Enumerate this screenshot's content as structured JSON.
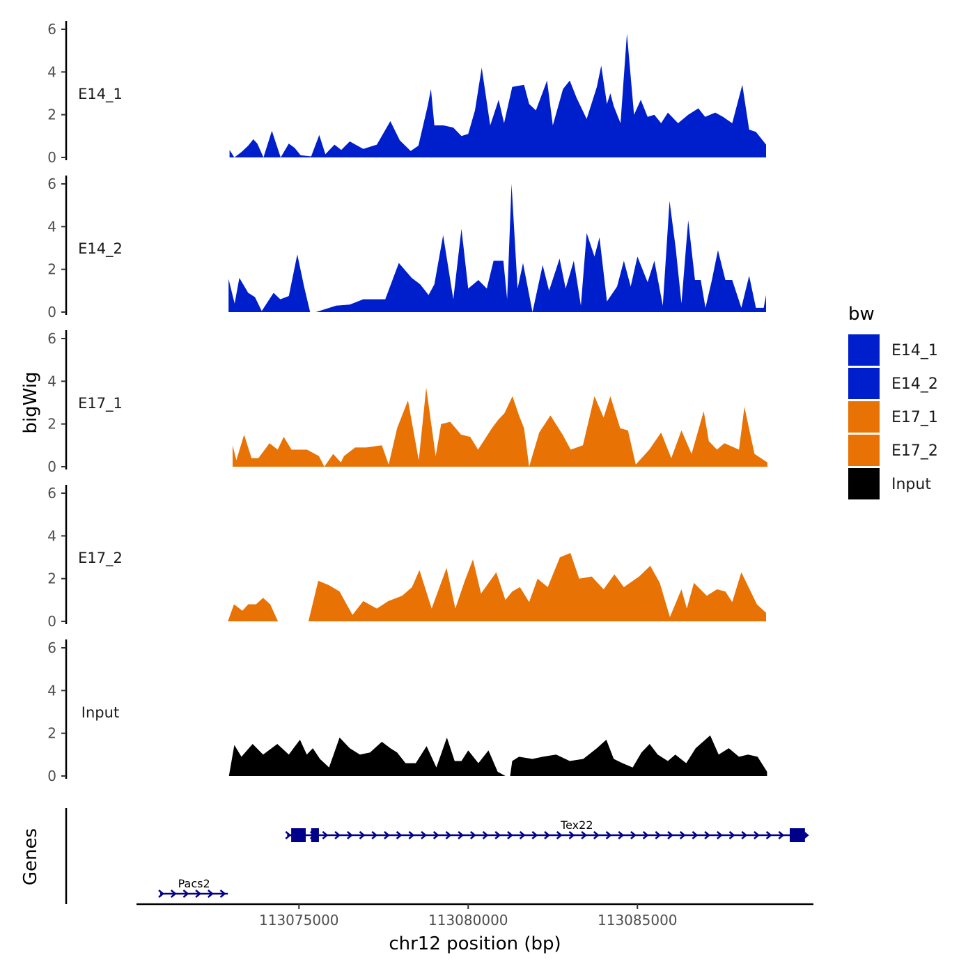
{
  "chart_data": {
    "type": "area",
    "ylabel": "bigWig",
    "xlabel": "chr12 position (bp)",
    "genes_label": "Genes",
    "xlim": [
      113070200,
      113090200
    ],
    "ylim": [
      0,
      6
    ],
    "yticks": [
      "0",
      "2",
      "4",
      "6"
    ],
    "xticks": [
      {
        "value": 113075000,
        "label": "113075000"
      },
      {
        "value": 113080000,
        "label": "113080000"
      },
      {
        "value": 113085000,
        "label": "113085000"
      }
    ],
    "legend": {
      "title": "bw",
      "items": [
        {
          "label": "E14_1",
          "color": "#001fcc"
        },
        {
          "label": "E14_2",
          "color": "#001fcc"
        },
        {
          "label": "E17_1",
          "color": "#e87203"
        },
        {
          "label": "E17_2",
          "color": "#e87203"
        },
        {
          "label": "Input",
          "color": "#000000"
        }
      ]
    },
    "tracks": [
      {
        "name": "E14_1",
        "color": "#001fcc",
        "x": [
          113072950,
          113073090,
          113073300,
          113073500,
          113073650,
          113073770,
          113073950,
          113074200,
          113074460,
          113074700,
          113074870,
          113075050,
          113075360,
          113075600,
          113075780,
          113076050,
          113076250,
          113076500,
          113076900,
          113077300,
          113077700,
          113077980,
          113078300,
          113078530,
          113078800,
          113078900,
          113079000,
          113079270,
          113079560,
          113079800,
          113080000,
          113080200,
          113080400,
          113080650,
          113080900,
          113081060,
          113081300,
          113081650,
          113081800,
          113082000,
          113082330,
          113082500,
          113082800,
          113083000,
          113083200,
          113083500,
          113083800,
          113083930,
          113084100,
          113084200,
          113084300,
          113084500,
          113084690,
          113084900,
          113085100,
          113085300,
          113085500,
          113085700,
          113085900,
          113086200,
          113086500,
          113086800,
          113087000,
          113087300,
          113087530,
          113087800,
          113088100,
          113088300,
          113088500,
          113088800
        ],
        "y": [
          0.35,
          0,
          0.25,
          0.55,
          0.85,
          0.65,
          0,
          1.25,
          0,
          0.65,
          0.45,
          0.1,
          0.05,
          1.05,
          0.15,
          0.6,
          0.35,
          0.75,
          0.4,
          0.6,
          1.7,
          0.8,
          0.3,
          0.55,
          2.4,
          3.2,
          1.5,
          1.5,
          1.4,
          1.0,
          1.1,
          2.2,
          4.2,
          1.5,
          2.7,
          1.6,
          3.3,
          3.4,
          2.5,
          2.2,
          3.6,
          1.5,
          3.2,
          3.6,
          2.8,
          1.8,
          3.3,
          4.3,
          2.5,
          3.0,
          2.4,
          1.6,
          5.8,
          2.0,
          2.7,
          1.9,
          2.0,
          1.6,
          2.1,
          1.6,
          2.0,
          2.3,
          1.9,
          2.1,
          1.9,
          1.6,
          3.4,
          1.3,
          1.2,
          0.6
        ]
      },
      {
        "name": "E14_2",
        "color": "#001fcc",
        "x": [
          113072920,
          113073100,
          113073240,
          113073500,
          113073700,
          113073900,
          113074250,
          113074450,
          113074700,
          113074950,
          113075150,
          113075330,
          113075500,
          113076100,
          113076500,
          113076900,
          113077550,
          113077950,
          113078330,
          113078580,
          113078830,
          113079000,
          113079260,
          113079560,
          113079800,
          113080000,
          113080300,
          113080550,
          113080750,
          113081040,
          113081150,
          113081280,
          113081460,
          113081620,
          113081900,
          113082200,
          113082390,
          113082700,
          113082880,
          113083120,
          113083330,
          113083500,
          113083730,
          113083880,
          113084100,
          113084400,
          113084600,
          113084800,
          113085000,
          113085300,
          113085500,
          113085750,
          113085950,
          113086130,
          113086300,
          113086500,
          113086700,
          113086870,
          113087010,
          113087200,
          113087380,
          113087600,
          113087800,
          113088070,
          113088300,
          113088500,
          113088730,
          113088800
        ],
        "y": [
          1.55,
          0.4,
          1.6,
          0.9,
          0.7,
          0.05,
          0.9,
          0.6,
          0.75,
          2.7,
          1.2,
          0,
          0,
          0.3,
          0.35,
          0.6,
          0.6,
          2.3,
          1.6,
          1.3,
          0.8,
          1.3,
          3.6,
          0.6,
          3.9,
          1.1,
          1.5,
          1.1,
          2.4,
          2.4,
          0.6,
          6.0,
          1.1,
          2.3,
          0.0,
          2.2,
          1.0,
          2.5,
          1.1,
          2.4,
          0.3,
          3.7,
          2.6,
          3.5,
          0.5,
          1.2,
          2.4,
          1.2,
          2.6,
          1.4,
          2.4,
          0.3,
          5.2,
          3.0,
          0.4,
          4.3,
          1.5,
          1.5,
          0.2,
          1.5,
          2.9,
          1.5,
          1.5,
          0.2,
          1.7,
          0.2,
          0.2,
          0.8
        ]
      },
      {
        "name": "E17_1",
        "color": "#e87203",
        "x": [
          113073040,
          113073150,
          113073380,
          113073600,
          113073800,
          113074130,
          113074370,
          113074550,
          113074780,
          113075030,
          113075240,
          113075590,
          113075750,
          113076010,
          113076240,
          113076330,
          113076660,
          113076990,
          113077450,
          113077650,
          113077900,
          113078220,
          113078540,
          113078760,
          113079040,
          113079200,
          113079470,
          113079790,
          113080060,
          113080290,
          113080700,
          113080890,
          113081070,
          113081310,
          113081500,
          113081650,
          113081800,
          113082100,
          113082430,
          113082790,
          113083030,
          113083390,
          113083730,
          113084000,
          113084200,
          113084490,
          113084720,
          113084950,
          113085350,
          113085700,
          113086000,
          113086300,
          113086600,
          113086960,
          113087110,
          113087350,
          113087570,
          113088000,
          113088160,
          113088460,
          113088840
        ],
        "y": [
          1.0,
          0.3,
          1.5,
          0.4,
          0.4,
          1.1,
          0.8,
          1.4,
          0.8,
          0.8,
          0.8,
          0.5,
          0,
          0.6,
          0.2,
          0.5,
          0.9,
          0.9,
          1.0,
          0.1,
          1.8,
          3.1,
          0.3,
          3.7,
          0.5,
          2.0,
          2.1,
          1.5,
          1.4,
          0.8,
          1.8,
          2.2,
          2.5,
          3.3,
          2.4,
          1.8,
          0.0,
          1.6,
          2.4,
          1.5,
          0.8,
          1.0,
          3.3,
          2.3,
          3.3,
          1.8,
          1.7,
          0.1,
          0.8,
          1.6,
          0.4,
          1.7,
          0.6,
          2.6,
          1.2,
          0.8,
          1.1,
          0.8,
          2.8,
          0.6,
          0.2
        ]
      },
      {
        "name": "E17_2",
        "color": "#e87203",
        "x": [
          113072900,
          113073080,
          113073330,
          113073500,
          113073730,
          113073940,
          113074150,
          113074380,
          113075280,
          113075570,
          113075880,
          113076200,
          113076580,
          113076900,
          113077300,
          113077640,
          113078050,
          113078340,
          113078560,
          113078920,
          113079360,
          113079620,
          113079900,
          113080140,
          113080380,
          113080830,
          113081100,
          113081300,
          113081530,
          113081800,
          113082050,
          113082350,
          113082710,
          113083020,
          113083280,
          113083650,
          113084000,
          113084320,
          113084600,
          113085050,
          113085380,
          113085660,
          113085960,
          113086300,
          113086460,
          113086670,
          113087050,
          113087350,
          113087600,
          113087800,
          113088070,
          113088530,
          113088800
        ],
        "y": [
          0,
          0.8,
          0.5,
          0.8,
          0.8,
          1.1,
          0.8,
          0,
          0,
          1.9,
          1.7,
          1.4,
          0.3,
          0.95,
          0.6,
          0.95,
          1.2,
          1.6,
          2.4,
          0.6,
          2.5,
          0.6,
          1.9,
          2.9,
          1.3,
          2.3,
          1.0,
          1.4,
          1.6,
          0.9,
          2.0,
          1.6,
          3.0,
          3.2,
          2.0,
          2.1,
          1.5,
          2.2,
          1.6,
          2.1,
          2.6,
          1.8,
          0.2,
          1.5,
          0.6,
          1.8,
          1.2,
          1.5,
          1.4,
          0.9,
          2.3,
          0.8,
          0.4
        ]
      },
      {
        "name": "Input",
        "color": "#000000",
        "x": [
          113072930,
          113073090,
          113073300,
          113073630,
          113073940,
          113074360,
          113074700,
          113075030,
          113075230,
          113075410,
          113075620,
          113075890,
          113076200,
          113076500,
          113076800,
          113077100,
          113077450,
          113077700,
          113077900,
          113078150,
          113078450,
          113078770,
          113079060,
          113079370,
          113079600,
          113079800,
          113080000,
          113080300,
          113080600,
          113080870,
          113081100,
          113081240,
          113081300,
          113081500,
          113081900,
          113082200,
          113082600,
          113083000,
          113083400,
          113083800,
          113084080,
          113084300,
          113084560,
          113084860,
          113085120,
          113085360,
          113085600,
          113085900,
          113086120,
          113086440,
          113086720,
          113087150,
          113087400,
          113087700,
          113088000,
          113088270,
          113088550,
          113088830
        ],
        "y": [
          0,
          1.45,
          0.9,
          1.5,
          1.0,
          1.5,
          1.0,
          1.7,
          1.0,
          1.3,
          0.8,
          0.4,
          1.8,
          1.3,
          1.0,
          1.1,
          1.6,
          1.3,
          1.1,
          0.6,
          0.6,
          1.4,
          0.4,
          1.8,
          0.7,
          0.7,
          1.2,
          0.6,
          1.2,
          0.2,
          0,
          0,
          0.7,
          0.9,
          0.8,
          0.9,
          1.0,
          0.7,
          0.8,
          1.3,
          1.7,
          0.8,
          0.6,
          0.4,
          1.1,
          1.5,
          1.0,
          0.7,
          1.0,
          0.6,
          1.3,
          1.9,
          1.0,
          1.3,
          0.9,
          1.0,
          0.9,
          0.2
        ]
      }
    ],
    "genes": [
      {
        "name": "Pacs2",
        "start": 113070900,
        "end": 113072900,
        "strand": "+",
        "exons": []
      },
      {
        "name": "Tex22",
        "start": 113074650,
        "end": 113090000,
        "strand": "+",
        "exons": [
          [
            113074770,
            113075200
          ],
          [
            113075360,
            113075590
          ],
          [
            113089500,
            113089950
          ]
        ]
      }
    ]
  }
}
